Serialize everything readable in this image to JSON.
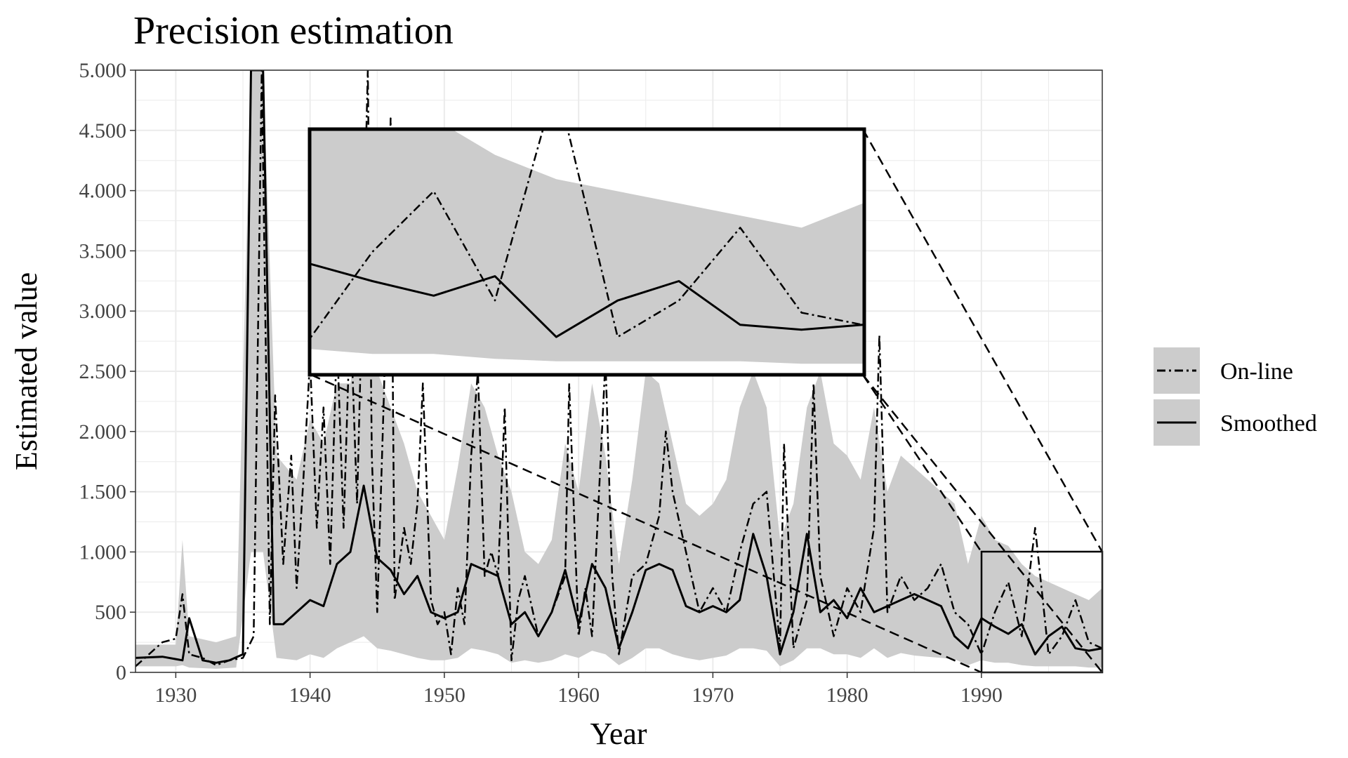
{
  "chart_data": {
    "type": "line",
    "title": "Precision estimation",
    "xlabel": "Year",
    "ylabel": "Estimated value",
    "xlim": [
      1927,
      1999
    ],
    "ylim": [
      0,
      5000
    ],
    "x_ticks": [
      1930,
      1940,
      1950,
      1960,
      1970,
      1980,
      1990
    ],
    "y_ticks": [
      0,
      500,
      1000,
      1500,
      2000,
      2500,
      3000,
      3500,
      4000,
      4500,
      5000
    ],
    "y_tick_labels": [
      "0",
      "500",
      "1.000",
      "1.500",
      "2.000",
      "2.500",
      "3.000",
      "3.500",
      "4.000",
      "4.500",
      "5.000"
    ],
    "grid": true,
    "legend_position": "right",
    "legend": [
      "On-line",
      "Smoothed"
    ],
    "band_color": "#cccccc",
    "series": [
      {
        "name": "Smoothed",
        "style": "solid",
        "x": [
          1927,
          1929,
          1930.5,
          1931,
          1932,
          1933,
          1934,
          1935,
          1935.6,
          1936.5,
          1937.3,
          1938,
          1939,
          1940,
          1941,
          1942,
          1943,
          1944,
          1945,
          1946,
          1947,
          1948,
          1949,
          1950,
          1951,
          1952,
          1953,
          1954,
          1955,
          1956,
          1957,
          1958,
          1959,
          1960,
          1961,
          1962,
          1963,
          1964,
          1965,
          1966,
          1967,
          1968,
          1969,
          1970,
          1971,
          1972,
          1973,
          1974,
          1975,
          1976,
          1977,
          1978,
          1979,
          1980,
          1981,
          1982,
          1983,
          1984,
          1985,
          1986,
          1987,
          1988,
          1989,
          1990,
          1991,
          1992,
          1993,
          1994,
          1995,
          1996,
          1997,
          1998,
          1999
        ],
        "y": [
          120,
          130,
          100,
          450,
          100,
          80,
          100,
          150,
          5000,
          5000,
          400,
          400,
          500,
          600,
          550,
          900,
          1000,
          1550,
          950,
          850,
          650,
          800,
          500,
          450,
          500,
          900,
          850,
          800,
          400,
          500,
          300,
          500,
          850,
          400,
          900,
          700,
          200,
          500,
          850,
          900,
          850,
          550,
          500,
          550,
          500,
          600,
          1150,
          800,
          150,
          500,
          1150,
          500,
          600,
          450,
          700,
          500,
          550,
          600,
          650,
          600,
          550,
          300,
          200,
          450,
          380,
          320,
          400,
          150,
          300,
          380,
          200,
          180,
          200
        ]
      },
      {
        "name": "On-line",
        "style": "dashdot",
        "x": [
          1927,
          1928,
          1929,
          1930,
          1930.5,
          1931,
          1932,
          1933,
          1934,
          1935,
          1935.8,
          1936.4,
          1937,
          1937.4,
          1938,
          1938.6,
          1939,
          1939.5,
          1940,
          1940.5,
          1941,
          1941.5,
          1942,
          1942.5,
          1943,
          1943.5,
          1944,
          1944.3,
          1944.6,
          1945,
          1945.5,
          1946,
          1946.3,
          1947,
          1947.5,
          1948,
          1948.4,
          1949,
          1949.5,
          1950,
          1950.5,
          1951,
          1951.5,
          1952,
          1952.5,
          1953,
          1953.5,
          1954,
          1954.5,
          1955,
          1955.5,
          1956,
          1957,
          1958,
          1959,
          1959.3,
          1960,
          1960.5,
          1961,
          1962,
          1962.5,
          1963,
          1964,
          1965,
          1966,
          1966.5,
          1967,
          1968,
          1969,
          1970,
          1971,
          1972,
          1973,
          1974,
          1975,
          1975.3,
          1976,
          1977,
          1977.5,
          1978,
          1979,
          1980,
          1981,
          1982,
          1982.4,
          1983,
          1984,
          1985,
          1986,
          1987,
          1988,
          1989,
          1990,
          1991,
          1992,
          1993,
          1994,
          1995,
          1996,
          1997,
          1998,
          1999
        ],
        "y": [
          50,
          150,
          250,
          280,
          650,
          150,
          120,
          60,
          100,
          120,
          300,
          5000,
          400,
          2300,
          900,
          1800,
          700,
          1600,
          2600,
          1200,
          2200,
          900,
          2800,
          1200,
          3000,
          1400,
          3600,
          5000,
          1800,
          500,
          2300,
          4600,
          600,
          1200,
          900,
          1400,
          2400,
          600,
          400,
          500,
          150,
          700,
          400,
          1800,
          2500,
          800,
          1000,
          800,
          2200,
          100,
          600,
          800,
          300,
          500,
          800,
          2400,
          300,
          700,
          300,
          2600,
          800,
          150,
          800,
          900,
          1300,
          2000,
          1500,
          1000,
          500,
          700,
          500,
          1000,
          1400,
          1500,
          200,
          1900,
          200,
          600,
          2400,
          800,
          300,
          700,
          500,
          1200,
          2800,
          500,
          800,
          600,
          700,
          900,
          500,
          400,
          150,
          500,
          750,
          300,
          1200,
          150,
          300,
          600,
          250,
          200
        ]
      }
    ],
    "band": {
      "x": [
        1927,
        1930,
        1930.5,
        1931,
        1933,
        1934.5,
        1935.6,
        1936.5,
        1937.5,
        1939,
        1940,
        1941,
        1942,
        1943,
        1944,
        1945,
        1946,
        1947,
        1948,
        1949,
        1950,
        1951,
        1952,
        1953,
        1954,
        1955,
        1956,
        1957,
        1958,
        1959,
        1960,
        1961,
        1962,
        1963,
        1964,
        1965,
        1966,
        1967,
        1968,
        1969,
        1970,
        1971,
        1972,
        1973,
        1974,
        1975,
        1976,
        1977,
        1978,
        1979,
        1980,
        1981,
        1982,
        1983,
        1984,
        1985,
        1986,
        1987,
        1988,
        1989,
        1990,
        1991,
        1992,
        1993,
        1994,
        1995,
        1996,
        1997,
        1998,
        1999
      ],
      "upper": [
        230,
        230,
        1100,
        300,
        250,
        300,
        5000,
        5000,
        1800,
        1600,
        2100,
        1900,
        2400,
        2400,
        3000,
        2500,
        2200,
        1900,
        1500,
        1300,
        1100,
        1700,
        2400,
        2200,
        1800,
        1500,
        1000,
        900,
        1100,
        1900,
        1500,
        2400,
        1800,
        900,
        1600,
        2500,
        2400,
        1900,
        1400,
        1300,
        1400,
        1600,
        2200,
        2500,
        2200,
        1100,
        1400,
        2200,
        2500,
        1900,
        1800,
        1600,
        2200,
        1500,
        1800,
        1700,
        1600,
        1500,
        1400,
        900,
        1300,
        1100,
        1050,
        900,
        800,
        750,
        700,
        650,
        600,
        700
      ],
      "lower": [
        50,
        50,
        60,
        40,
        30,
        40,
        1000,
        1000,
        120,
        100,
        150,
        120,
        200,
        250,
        300,
        200,
        180,
        150,
        120,
        100,
        100,
        120,
        200,
        180,
        150,
        80,
        100,
        80,
        100,
        150,
        120,
        180,
        150,
        60,
        120,
        200,
        200,
        150,
        120,
        100,
        120,
        140,
        200,
        200,
        180,
        50,
        100,
        200,
        200,
        150,
        150,
        120,
        200,
        120,
        160,
        140,
        130,
        120,
        110,
        60,
        100,
        80,
        80,
        60,
        50,
        50,
        50,
        50,
        40,
        40
      ]
    },
    "inset": {
      "xlim": [
        1990,
        1999
      ],
      "ylim": [
        0,
        1000
      ]
    }
  }
}
